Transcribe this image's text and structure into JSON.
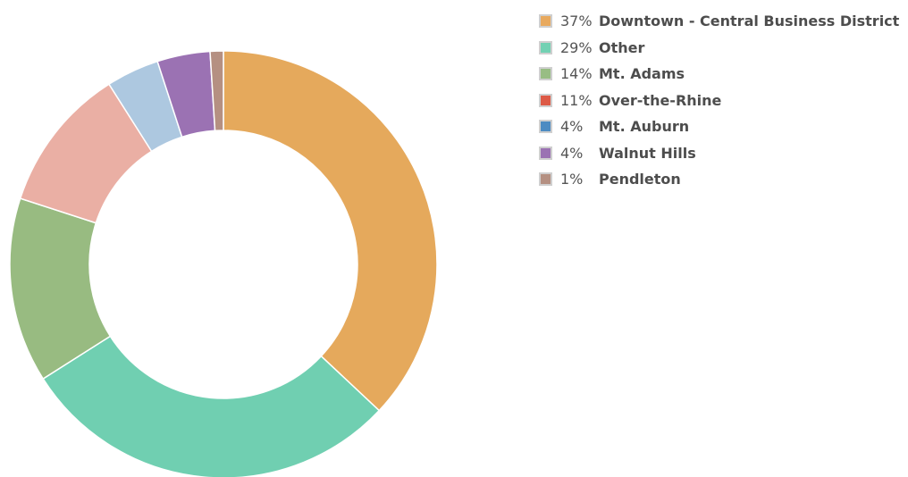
{
  "chart_data": {
    "type": "pie",
    "donut": true,
    "legend_position": "top-right",
    "slices": [
      {
        "label": "Downtown - Central Business District",
        "value": 37,
        "pct_text": "37%",
        "color": "#e5a95c",
        "legend_color": "#e8a95e"
      },
      {
        "label": "Other",
        "value": 29,
        "pct_text": "29%",
        "color": "#70cfb1",
        "legend_color": "#72d1b3"
      },
      {
        "label": "Mt. Adams",
        "value": 14,
        "pct_text": "14%",
        "color": "#98bb81",
        "legend_color": "#98bd84"
      },
      {
        "label": "Over-the-Rhine",
        "value": 11,
        "pct_text": "11%",
        "color": "#eaafa4",
        "legend_color": "#dd5a46"
      },
      {
        "label": "Mt. Auburn",
        "value": 4,
        "pct_text": "4%",
        "color": "#adc8e0",
        "legend_color": "#4d8bc2"
      },
      {
        "label": "Walnut Hills",
        "value": 4,
        "pct_text": "4%",
        "color": "#9b72b3",
        "legend_color": "#9b72b3"
      },
      {
        "label": "Pendleton",
        "value": 1,
        "pct_text": "1%",
        "color": "#b59082",
        "legend_color": "#b59082"
      }
    ]
  }
}
